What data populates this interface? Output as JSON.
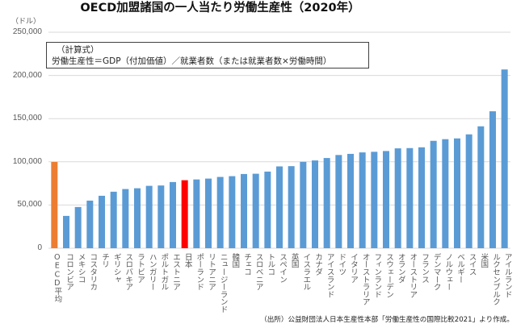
{
  "chart_data": {
    "type": "bar",
    "title": "OECD加盟諸国の一人当たり労働生産性（2020年）",
    "ylabel": "（ドル）",
    "xlabel": "",
    "ylim": [
      0,
      250000
    ],
    "yticks": [
      0,
      50000,
      100000,
      150000,
      200000,
      250000
    ],
    "ytick_labels": [
      "0",
      "50,000",
      "100,000",
      "150,000",
      "200,000",
      "250,000"
    ],
    "grid": true,
    "legend": "none",
    "categories": [
      "OECD平均",
      "コロンビア",
      "メキシコ",
      "コスタリカ",
      "チリ",
      "ギリシャ",
      "スロバキア",
      "ラトビア",
      "ハンガリー",
      "ポルトガル",
      "エストニア",
      "日本",
      "ポーランド",
      "リトアニア",
      "ニュージーランド",
      "韓国",
      "チェコ",
      "スロベニア",
      "トルコ",
      "スペイン",
      "英国",
      "イスラエル",
      "カナダ",
      "アイスランド",
      "ドイツ",
      "イタリア",
      "オーストラリア",
      "フィンランド",
      "スウェーデン",
      "オランダ",
      "オーストリア",
      "フランス",
      "デンマーク",
      "ノルウェー",
      "ベルギー",
      "スイス",
      "米国",
      "ルクセンブルク",
      "アイルランド"
    ],
    "values": [
      99900,
      37400,
      47700,
      55100,
      60700,
      65400,
      68500,
      69400,
      72200,
      72600,
      76600,
      78700,
      79600,
      80600,
      82500,
      83400,
      85900,
      86200,
      88700,
      94700,
      95000,
      100000,
      101600,
      104400,
      107900,
      109200,
      110900,
      111600,
      112500,
      115600,
      115900,
      116800,
      124300,
      126200,
      127100,
      131800,
      141100,
      158500,
      206900
    ],
    "highlight": {
      "OECD平均": "orange",
      "日本": "red"
    },
    "colors": {
      "default": "#5B9BD5",
      "orange": "#ED7D31",
      "red": "#FF0000",
      "grid": "#D9D9D9"
    },
    "annotations": {
      "formula_head": "（計算式）",
      "formula_body": "労働生産性＝GDP（付加価値）／就業者数（または就業者数×労働時間）"
    },
    "source": "（出所）公益財団法人日本生産性本部「労働生産性の国際比較2021」より作成。"
  }
}
